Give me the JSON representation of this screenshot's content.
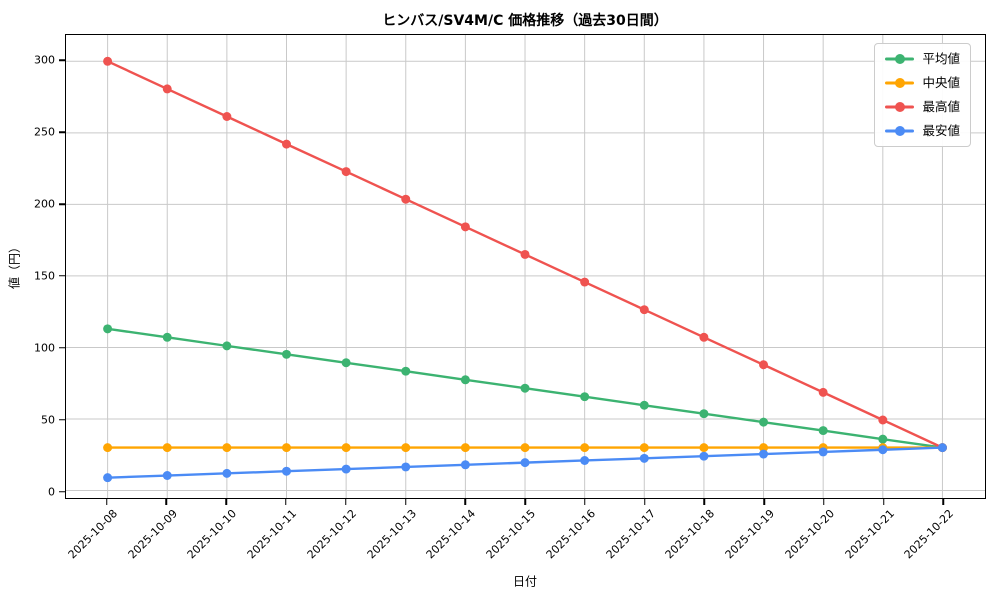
{
  "figure": {
    "title": "ヒンバス/SV4M/C 価格推移（過去30日間）",
    "xlabel": "日付",
    "ylabel": "値（円）"
  },
  "chart_data": {
    "type": "line",
    "title": "ヒンバス/SV4M/C 価格推移（過去30日間）",
    "xlabel": "日付",
    "ylabel": "値（円）",
    "grid": true,
    "legend_position": "upper right",
    "ylim": [
      -5,
      318
    ],
    "yticks": [
      0,
      50,
      100,
      150,
      200,
      250,
      300
    ],
    "categories": [
      "2025-10-08",
      "2025-10-09",
      "2025-10-10",
      "2025-10-11",
      "2025-10-12",
      "2025-10-13",
      "2025-10-14",
      "2025-10-15",
      "2025-10-16",
      "2025-10-17",
      "2025-10-18",
      "2025-10-19",
      "2025-10-20",
      "2025-10-21",
      "2025-10-22"
    ],
    "series": [
      {
        "name": "平均値",
        "color": "#3cb371",
        "marker": "circle",
        "values": [
          113,
          107.1,
          101.1,
          95.2,
          89.3,
          83.4,
          77.4,
          71.5,
          65.6,
          59.6,
          53.7,
          47.8,
          41.9,
          35.9,
          30
        ]
      },
      {
        "name": "中央値",
        "color": "#ffa502",
        "marker": "circle",
        "values": [
          30,
          30,
          30,
          30,
          30,
          30,
          30,
          30,
          30,
          30,
          30,
          30,
          30,
          30,
          30
        ]
      },
      {
        "name": "最高値",
        "color": "#ef5350",
        "marker": "circle",
        "values": [
          300,
          280.7,
          261.4,
          242.1,
          222.9,
          203.6,
          184.3,
          165,
          145.7,
          126.4,
          107.1,
          87.9,
          68.6,
          49.3,
          30
        ]
      },
      {
        "name": "最安値",
        "color": "#4b8bf5",
        "marker": "circle",
        "values": [
          9,
          10.5,
          12,
          13.5,
          15,
          16.5,
          18,
          19.5,
          21,
          22.5,
          24,
          25.5,
          27,
          28.5,
          30
        ]
      }
    ],
    "colors": {
      "grid": "#c9c9c9",
      "spine": "#000000",
      "background": "#ffffff"
    }
  }
}
